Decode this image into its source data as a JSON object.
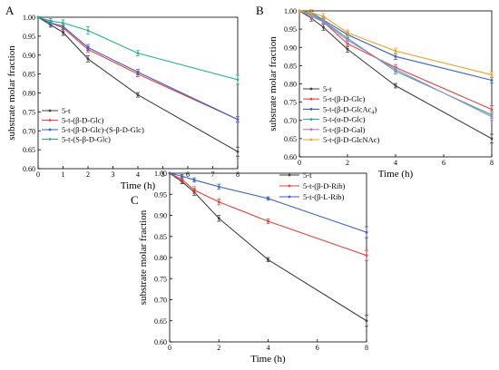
{
  "chart_data": [
    {
      "type": "line",
      "panel_label": "A",
      "xlabel": "Time (h)",
      "ylabel": "substrate molar fraction",
      "xlim": [
        0,
        8
      ],
      "ylim": [
        0.6,
        1.0
      ],
      "xticks": [
        "0",
        "1",
        "2",
        "3",
        "4",
        "5",
        "6",
        "7",
        "8"
      ],
      "yticks": [
        "0.60",
        "0.65",
        "0.70",
        "0.75",
        "0.80",
        "0.85",
        "0.90",
        "0.95",
        "1.00"
      ],
      "grid": false,
      "legend_position": "bottom-left",
      "x": [
        0,
        0.5,
        1,
        2,
        4,
        8
      ],
      "series": [
        {
          "name": "5-t",
          "color": "#404040",
          "values": [
            1.0,
            0.98,
            0.96,
            0.89,
            0.795,
            0.645
          ],
          "err": [
            0,
            0.006,
            0.008,
            0.008,
            0.006,
            0.012
          ]
        },
        {
          "name": "5-t-(β-D-Glc)",
          "color": "#e8423c",
          "values": [
            1.0,
            0.985,
            0.972,
            0.915,
            0.85,
            0.73
          ],
          "err": [
            0,
            0.006,
            0.008,
            0.008,
            0.007,
            0.007
          ]
        },
        {
          "name": "5-t-(β-D-Glc)-(S-β-D-Glc)",
          "color": "#3a5fc8",
          "values": [
            1.0,
            0.985,
            0.976,
            0.92,
            0.855,
            0.73
          ],
          "err": [
            0,
            0.006,
            0.008,
            0.008,
            0.007,
            0.007
          ]
        },
        {
          "name": "5-t-(S-β-D-Glc)",
          "color": "#27b38b",
          "values": [
            1.0,
            0.99,
            0.985,
            0.965,
            0.905,
            0.835
          ],
          "err": [
            0,
            0.006,
            0.008,
            0.01,
            0.007,
            0.012
          ]
        }
      ]
    },
    {
      "type": "line",
      "panel_label": "B",
      "xlabel": "Time (h)",
      "ylabel": "substrate molar fraction",
      "xlim": [
        0,
        8
      ],
      "ylim": [
        0.6,
        1.0
      ],
      "xticks": [
        "0",
        "2",
        "4",
        "6",
        "8"
      ],
      "yticks": [
        "0.60",
        "0.65",
        "0.70",
        "0.75",
        "0.80",
        "0.85",
        "0.90",
        "0.95",
        "1.00"
      ],
      "grid": false,
      "legend_position": "bottom-left",
      "x": [
        0,
        0.5,
        1,
        2,
        4,
        8
      ],
      "series": [
        {
          "name": "5-t",
          "color": "#404040",
          "values": [
            1.0,
            0.98,
            0.955,
            0.895,
            0.795,
            0.65
          ],
          "err": [
            0,
            0.008,
            0.008,
            0.008,
            0.006,
            0.012
          ]
        },
        {
          "name": "5-t-(β-D-Glc)",
          "color": "#e8423c",
          "values": [
            1.0,
            0.99,
            0.97,
            0.91,
            0.845,
            0.73
          ],
          "err": [
            0,
            0.008,
            0.008,
            0.008,
            0.008,
            0.01
          ]
        },
        {
          "name": "5-t-(β-D-GlcAc4)",
          "color": "#3a5fc8",
          "values": [
            1.0,
            0.995,
            0.975,
            0.935,
            0.875,
            0.81
          ],
          "err": [
            0,
            0.008,
            0.008,
            0.008,
            0.008,
            0.008
          ]
        },
        {
          "name": "5-t-(α-D-Glc)",
          "color": "#27b38b",
          "values": [
            1.0,
            0.99,
            0.972,
            0.925,
            0.835,
            0.715
          ],
          "err": [
            0,
            0.008,
            0.008,
            0.008,
            0.008,
            0.01
          ]
        },
        {
          "name": "5-t-(β-D-Gal)",
          "color": "#b07cd0",
          "values": [
            1.0,
            0.985,
            0.97,
            0.92,
            0.84,
            0.71
          ],
          "err": [
            0,
            0.008,
            0.008,
            0.008,
            0.008,
            0.01
          ]
        },
        {
          "name": "5-t-(β-D-GlcNAc)",
          "color": "#f0a020",
          "values": [
            1.0,
            0.995,
            0.985,
            0.94,
            0.89,
            0.825
          ],
          "err": [
            0,
            0.008,
            0.008,
            0.008,
            0.008,
            0.008
          ]
        }
      ]
    },
    {
      "type": "line",
      "panel_label": "C",
      "xlabel": "Time (h)",
      "ylabel": "substrate molar fraction",
      "xlim": [
        0,
        8
      ],
      "ylim": [
        0.6,
        1.0
      ],
      "xticks": [
        "0",
        "2",
        "4",
        "6",
        "8"
      ],
      "yticks": [
        "0.60",
        "0.65",
        "0.70",
        "0.75",
        "0.80",
        "0.85",
        "0.90",
        "0.95",
        "1.00"
      ],
      "grid": false,
      "legend_position": "top-right",
      "x": [
        0,
        0.5,
        1,
        2,
        4,
        8
      ],
      "series": [
        {
          "name": "5-t",
          "color": "#404040",
          "values": [
            1.0,
            0.98,
            0.955,
            0.893,
            0.795,
            0.65
          ],
          "err": [
            0,
            0.005,
            0.008,
            0.007,
            0.005,
            0.013
          ]
        },
        {
          "name": "5-t-(β-D-Rib)",
          "color": "#e8423c",
          "values": [
            1.0,
            0.985,
            0.96,
            0.932,
            0.886,
            0.805
          ],
          "err": [
            0,
            0.005,
            0.008,
            0.007,
            0.005,
            0.012
          ]
        },
        {
          "name": "5-t-(β-L-Rib)",
          "color": "#3a5fc8",
          "values": [
            1.0,
            0.993,
            0.984,
            0.968,
            0.94,
            0.86
          ],
          "err": [
            0,
            0.004,
            0.005,
            0.006,
            0.004,
            0.013
          ]
        }
      ]
    }
  ]
}
